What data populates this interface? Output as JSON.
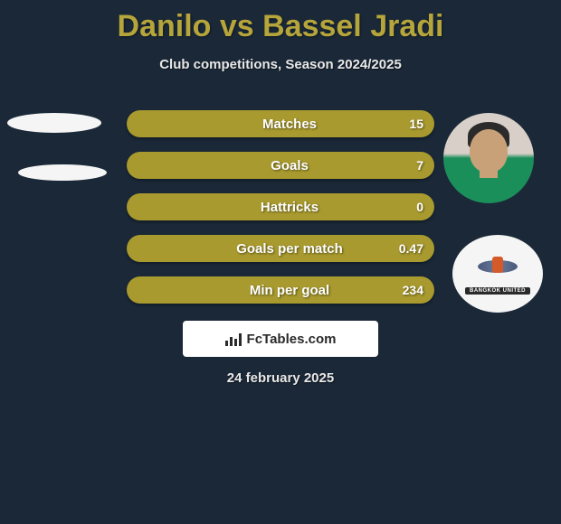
{
  "title": "Danilo vs Bassel Jradi",
  "subtitle": "Club competitions, Season 2024/2025",
  "stats": [
    {
      "label": "Matches",
      "value": "15"
    },
    {
      "label": "Goals",
      "value": "7"
    },
    {
      "label": "Hattricks",
      "value": "0"
    },
    {
      "label": "Goals per match",
      "value": "0.47"
    },
    {
      "label": "Min per goal",
      "value": "234"
    }
  ],
  "badge_text": "BANGKOK UNITED",
  "fctables_label": "FcTables.com",
  "date": "24 february 2025",
  "colors": {
    "background": "#1a2838",
    "title": "#b5a53b",
    "bar": "#a89a2e",
    "text_light": "#e8e8e8"
  }
}
